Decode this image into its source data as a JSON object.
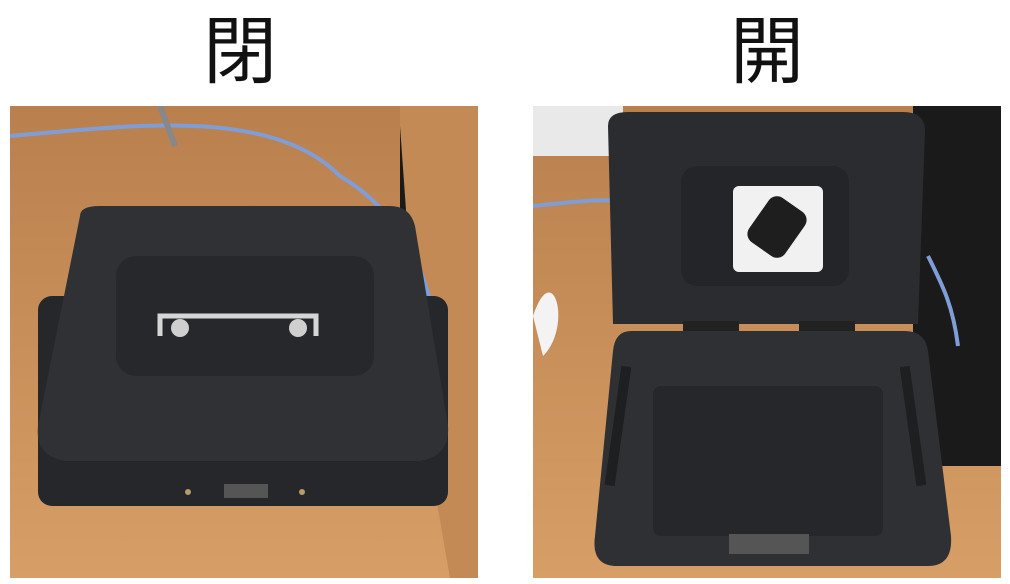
{
  "panels": [
    {
      "caption": "閉",
      "photo": "closed-cash-box",
      "icon": "lid-closed"
    },
    {
      "caption": "開",
      "photo": "open-cash-box",
      "icon": "lid-open"
    }
  ],
  "colors": {
    "wood": "#c9915e",
    "box": "#2b2d30",
    "box_light": "#3a3c40",
    "cable": "#7f9ed8",
    "background": "#ffffff"
  }
}
